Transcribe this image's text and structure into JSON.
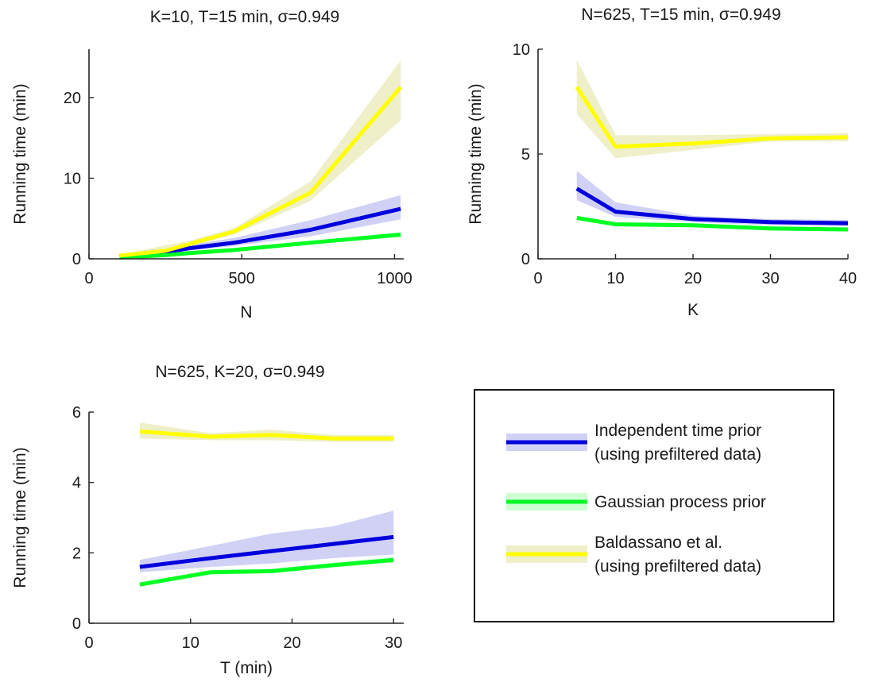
{
  "legend": {
    "entries": [
      {
        "series": "independent",
        "lines": [
          "Independent time prior",
          "(using prefiltered data)"
        ]
      },
      {
        "series": "gp",
        "lines": [
          "Gaussian process prior"
        ]
      },
      {
        "series": "baldassano",
        "lines": [
          "Baldassano et al.",
          "(using prefiltered data)"
        ]
      }
    ]
  },
  "chart_data": [
    {
      "type": "line",
      "title": "K=10, T=15 min, σ=0.949",
      "xlabel": "N",
      "ylabel": "Running time (min)",
      "xlim": [
        0,
        1030
      ],
      "ylim": [
        0,
        26
      ],
      "xticks": [
        0,
        500,
        1000
      ],
      "xtick_labels": [
        "0",
        "500",
        "1000"
      ],
      "yticks": [
        0,
        10,
        20
      ],
      "ytick_labels": [
        "0",
        "10",
        "20"
      ],
      "series": [
        {
          "key": "independent",
          "color": "#0000dd",
          "band_color": "#c9c9f4",
          "x": [
            100,
            250,
            325,
            475,
            725,
            1020
          ],
          "y": [
            0.3,
            0.8,
            1.3,
            2.0,
            3.6,
            6.2
          ],
          "lower": [
            0.2,
            0.6,
            1.0,
            1.6,
            2.8,
            4.9
          ],
          "upper": [
            0.45,
            1.1,
            1.7,
            2.6,
            4.8,
            7.9
          ]
        },
        {
          "key": "gp",
          "color": "#00ff22",
          "band_color": "#c4ffcb",
          "x": [
            100,
            250,
            325,
            475,
            725,
            1020
          ],
          "y": [
            0.15,
            0.45,
            0.7,
            1.1,
            2.0,
            3.0
          ],
          "lower": [
            0.1,
            0.35,
            0.55,
            0.95,
            1.8,
            2.7
          ],
          "upper": [
            0.2,
            0.55,
            0.85,
            1.25,
            2.2,
            3.3
          ]
        },
        {
          "key": "baldassano",
          "color": "#ffff00",
          "band_color": "#ececc0",
          "x": [
            100,
            250,
            325,
            475,
            725,
            1020
          ],
          "y": [
            0.4,
            1.0,
            1.8,
            3.4,
            8.2,
            21.3
          ],
          "lower": [
            0.3,
            0.8,
            1.5,
            3.0,
            7.2,
            17.2
          ],
          "upper": [
            0.5,
            1.7,
            2.2,
            3.8,
            9.6,
            24.6
          ]
        }
      ]
    },
    {
      "type": "line",
      "title": "N=625, T=15 min, σ=0.949",
      "xlabel": "K",
      "ylabel": "Running time (min)",
      "xlim": [
        0,
        40
      ],
      "ylim": [
        0,
        10
      ],
      "xticks": [
        0,
        10,
        20,
        30,
        40
      ],
      "xtick_labels": [
        "0",
        "10",
        "20",
        "30",
        "40"
      ],
      "yticks": [
        0,
        5,
        10
      ],
      "ytick_labels": [
        "0",
        "5",
        "10"
      ],
      "series": [
        {
          "key": "independent",
          "color": "#0000dd",
          "band_color": "#c9c9f4",
          "x": [
            5,
            10,
            20,
            30,
            40
          ],
          "y": [
            3.35,
            2.25,
            1.9,
            1.75,
            1.7
          ],
          "lower": [
            2.8,
            2.0,
            1.75,
            1.6,
            1.55
          ],
          "upper": [
            4.2,
            2.7,
            2.05,
            1.9,
            1.85
          ]
        },
        {
          "key": "gp",
          "color": "#00ff22",
          "band_color": "#c4ffcb",
          "x": [
            5,
            10,
            20,
            30,
            40
          ],
          "y": [
            1.95,
            1.65,
            1.6,
            1.45,
            1.4
          ],
          "lower": [
            1.85,
            1.55,
            1.5,
            1.35,
            1.3
          ],
          "upper": [
            2.05,
            1.75,
            1.7,
            1.55,
            1.5
          ]
        },
        {
          "key": "baldassano",
          "color": "#ffff00",
          "band_color": "#ececc0",
          "x": [
            5,
            10,
            20,
            30,
            40
          ],
          "y": [
            8.2,
            5.35,
            5.5,
            5.75,
            5.8
          ],
          "lower": [
            6.9,
            4.8,
            5.2,
            5.6,
            5.6
          ],
          "upper": [
            9.5,
            5.9,
            5.9,
            5.95,
            6.0
          ]
        }
      ]
    },
    {
      "type": "line",
      "title": "N=625, K=20, σ=0.949",
      "xlabel": "T (min)",
      "ylabel": "Running time (min)",
      "xlim": [
        0,
        31
      ],
      "ylim": [
        0,
        6
      ],
      "xticks": [
        0,
        10,
        20,
        30
      ],
      "xtick_labels": [
        "0",
        "10",
        "20",
        "30"
      ],
      "yticks": [
        0,
        2,
        4,
        6
      ],
      "ytick_labels": [
        "0",
        "2",
        "4",
        "6"
      ],
      "series": [
        {
          "key": "independent",
          "color": "#0000dd",
          "band_color": "#c9c9f4",
          "x": [
            5,
            12,
            18,
            24,
            30
          ],
          "y": [
            1.6,
            1.85,
            2.05,
            2.25,
            2.45
          ],
          "lower": [
            1.45,
            1.6,
            1.7,
            1.85,
            1.95
          ],
          "upper": [
            1.8,
            2.2,
            2.55,
            2.75,
            3.2
          ]
        },
        {
          "key": "gp",
          "color": "#00ff22",
          "band_color": "#c4ffcb",
          "x": [
            5,
            12,
            18,
            24,
            30
          ],
          "y": [
            1.1,
            1.45,
            1.48,
            1.65,
            1.8
          ],
          "lower": [
            1.05,
            1.38,
            1.42,
            1.58,
            1.72
          ],
          "upper": [
            1.15,
            1.52,
            1.55,
            1.72,
            1.88
          ]
        },
        {
          "key": "baldassano",
          "color": "#ffff00",
          "band_color": "#ececc0",
          "x": [
            5,
            12,
            18,
            24,
            30
          ],
          "y": [
            5.45,
            5.3,
            5.35,
            5.25,
            5.25
          ],
          "lower": [
            5.25,
            5.2,
            5.2,
            5.15,
            5.15
          ],
          "upper": [
            5.7,
            5.4,
            5.5,
            5.35,
            5.35
          ]
        }
      ]
    }
  ]
}
